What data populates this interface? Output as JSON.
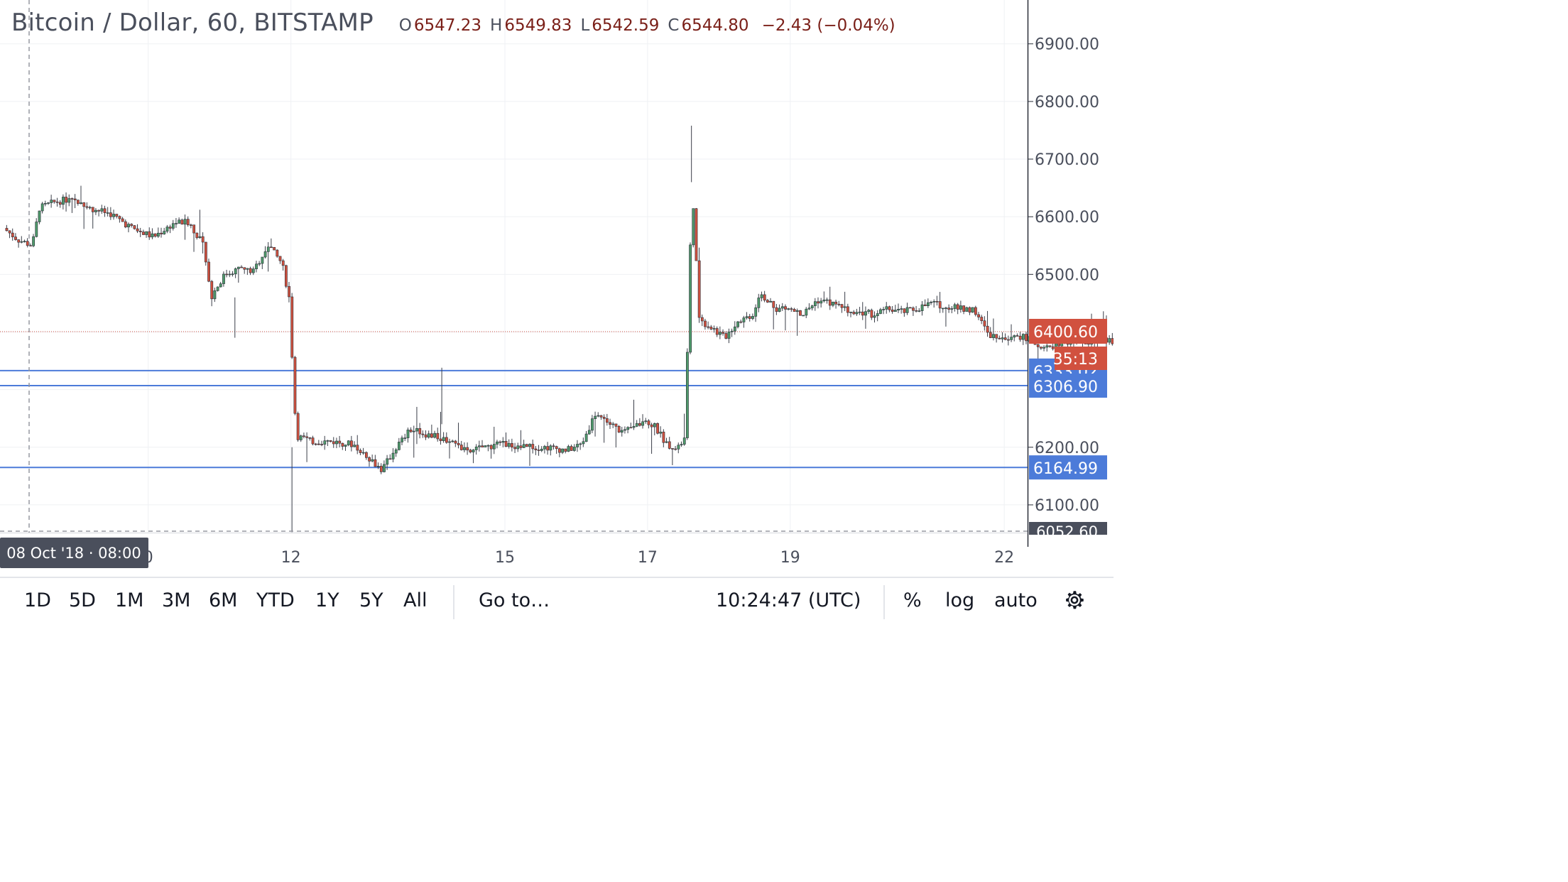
{
  "header": {
    "title": "Bitcoin / Dollar, 60, BITSTAMP",
    "ohlc": {
      "o_label": "O",
      "o": "6547.23",
      "h_label": "H",
      "h": "6549.83",
      "l_label": "L",
      "l": "6542.59",
      "c_label": "C",
      "c": "6544.80",
      "change": "−2.43 (−0.04%)"
    }
  },
  "chart_data": {
    "type": "candlestick",
    "symbol": "Bitcoin / Dollar",
    "interval": "60",
    "exchange": "BITSTAMP",
    "ylim": [
      6052.6,
      6955
    ],
    "y_ticks": [
      "6900.00",
      "6800.00",
      "6700.00",
      "6600.00",
      "6500.00",
      "6200.00",
      "6100.00"
    ],
    "x_ticks": [
      {
        "label": "0",
        "day": 10
      },
      {
        "label": "12",
        "day": 12
      },
      {
        "label": "15",
        "day": 15
      },
      {
        "label": "17",
        "day": 17
      },
      {
        "label": "19",
        "day": 19
      },
      {
        "label": "22",
        "day": 22
      }
    ],
    "crosshair_label": "08 Oct '18 · 08:00",
    "last_price": {
      "value": 6400.6,
      "label": "6400.60",
      "countdown": "35:13",
      "color": "#d1513f"
    },
    "low_marker": {
      "value": 6052.6,
      "label": "6052.60"
    },
    "horizontal_lines": [
      {
        "value": 6333.02,
        "label": "6333.02"
      },
      {
        "value": 6306.9,
        "label": "6306.90"
      },
      {
        "value": 6164.99,
        "label": "6164.99"
      }
    ],
    "line_color": "#4c7bd9",
    "up_color": "#4f9a6b",
    "down_color": "#d1513f",
    "price_path": [
      [
        8.0,
        6580
      ],
      [
        8.2,
        6560
      ],
      [
        8.4,
        6550
      ],
      [
        8.5,
        6615
      ],
      [
        8.7,
        6625
      ],
      [
        8.9,
        6630
      ],
      [
        9.2,
        6615
      ],
      [
        9.5,
        6605
      ],
      [
        9.8,
        6580
      ],
      [
        10.1,
        6565
      ],
      [
        10.4,
        6590
      ],
      [
        10.6,
        6590
      ],
      [
        10.8,
        6550
      ],
      [
        10.9,
        6460
      ],
      [
        11.1,
        6500
      ],
      [
        11.3,
        6510
      ],
      [
        11.5,
        6505
      ],
      [
        11.7,
        6550
      ],
      [
        11.9,
        6520
      ],
      [
        12.0,
        6460
      ],
      [
        12.1,
        6220
      ],
      [
        12.3,
        6210
      ],
      [
        12.6,
        6210
      ],
      [
        12.9,
        6205
      ],
      [
        13.1,
        6185
      ],
      [
        13.3,
        6160
      ],
      [
        13.5,
        6200
      ],
      [
        13.7,
        6230
      ],
      [
        14.0,
        6220
      ],
      [
        14.3,
        6210
      ],
      [
        14.5,
        6190
      ],
      [
        14.7,
        6200
      ],
      [
        15.0,
        6205
      ],
      [
        15.3,
        6200
      ],
      [
        15.6,
        6200
      ],
      [
        15.9,
        6195
      ],
      [
        16.1,
        6205
      ],
      [
        16.3,
        6260
      ],
      [
        16.5,
        6240
      ],
      [
        16.7,
        6225
      ],
      [
        16.9,
        6240
      ],
      [
        17.1,
        6240
      ],
      [
        17.3,
        6205
      ],
      [
        17.45,
        6200
      ],
      [
        17.55,
        6215
      ],
      [
        17.65,
        6660
      ],
      [
        17.75,
        6420
      ],
      [
        17.9,
        6410
      ],
      [
        18.1,
        6390
      ],
      [
        18.3,
        6420
      ],
      [
        18.5,
        6430
      ],
      [
        18.6,
        6470
      ],
      [
        18.8,
        6440
      ],
      [
        19.0,
        6440
      ],
      [
        19.2,
        6430
      ],
      [
        19.4,
        6455
      ],
      [
        19.6,
        6450
      ],
      [
        19.8,
        6440
      ],
      [
        20.0,
        6435
      ],
      [
        20.2,
        6430
      ],
      [
        20.4,
        6440
      ],
      [
        20.6,
        6435
      ],
      [
        20.8,
        6440
      ],
      [
        21.0,
        6450
      ],
      [
        21.2,
        6445
      ],
      [
        21.4,
        6440
      ],
      [
        21.6,
        6440
      ],
      [
        21.8,
        6395
      ],
      [
        22.0,
        6390
      ],
      [
        22.2,
        6395
      ],
      [
        22.4,
        6385
      ],
      [
        22.6,
        6370
      ],
      [
        22.8,
        6380
      ],
      [
        23.0,
        6385
      ],
      [
        23.2,
        6380
      ],
      [
        23.4,
        6385
      ],
      [
        23.6,
        6385
      ],
      [
        23.8,
        6380
      ],
      [
        24.0,
        6390
      ],
      [
        24.2,
        6408
      ],
      [
        24.3,
        6401
      ]
    ]
  },
  "toolbar": {
    "ranges": [
      "1D",
      "5D",
      "1M",
      "3M",
      "6M",
      "YTD",
      "1Y",
      "5Y",
      "All"
    ],
    "goto": "Go to…",
    "clock": "10:24:47 (UTC)",
    "percent": "%",
    "log": "log",
    "auto": "auto",
    "settings_icon": "gear-icon"
  }
}
